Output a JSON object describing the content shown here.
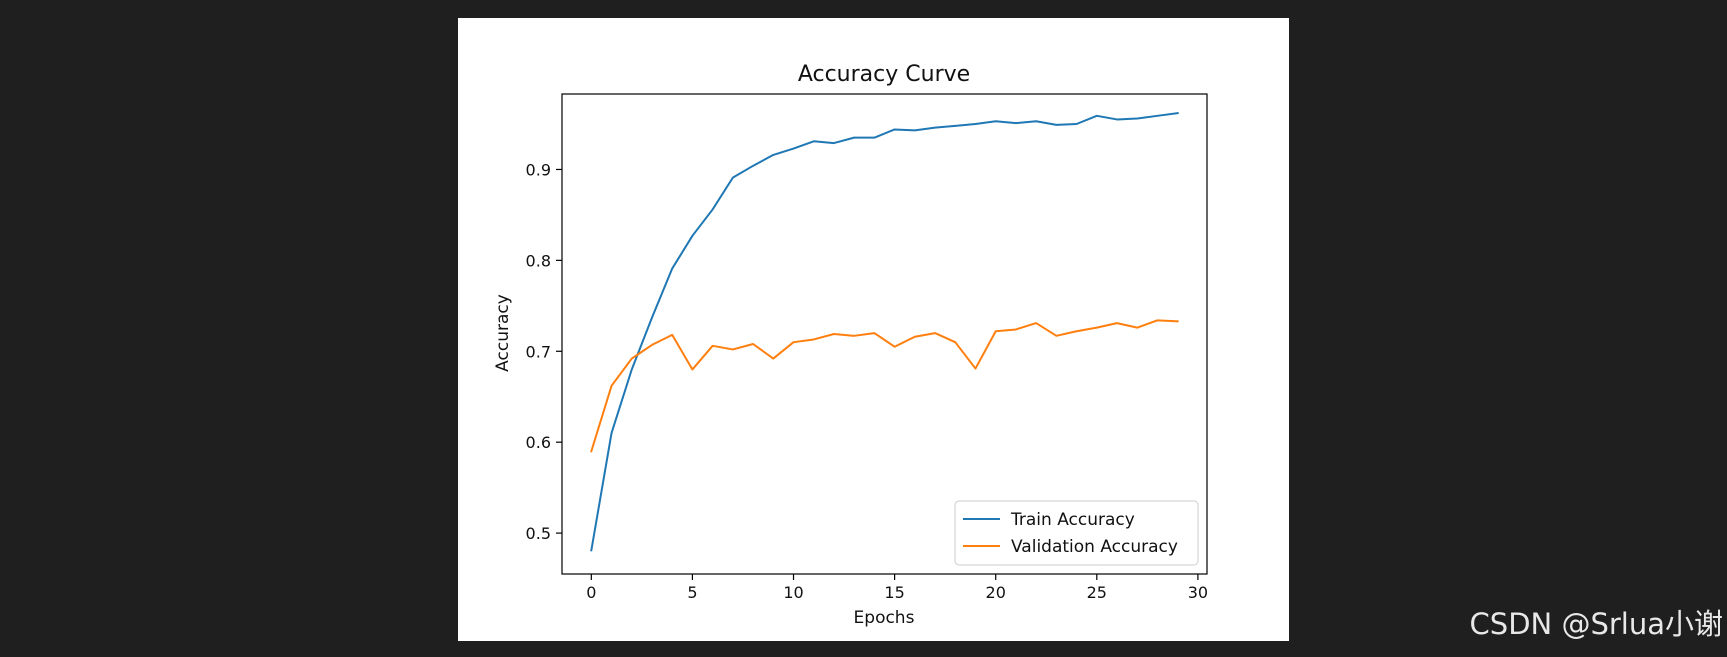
{
  "watermark": "CSDN @Srlua小谢",
  "chart_data": {
    "type": "line",
    "title": "Accuracy Curve",
    "xlabel": "Epochs",
    "ylabel": "Accuracy",
    "xlim": [
      -1.45,
      30.45
    ],
    "ylim": [
      0.455,
      0.983
    ],
    "xticks": [
      0,
      5,
      10,
      15,
      20,
      25,
      30
    ],
    "yticks": [
      0.5,
      0.6,
      0.7,
      0.8,
      0.9
    ],
    "ytick_labels": [
      "0.5",
      "0.6",
      "0.7",
      "0.8",
      "0.9"
    ],
    "grid": false,
    "legend": "lower right",
    "x": [
      0,
      1,
      2,
      3,
      4,
      5,
      6,
      7,
      8,
      9,
      10,
      11,
      12,
      13,
      14,
      15,
      16,
      17,
      18,
      19,
      20,
      21,
      22,
      23,
      24,
      25,
      26,
      27,
      28,
      29
    ],
    "series": [
      {
        "name": "Train Accuracy",
        "color": "#1f77b4",
        "values": [
          0.481,
          0.61,
          0.68,
          0.737,
          0.791,
          0.827,
          0.856,
          0.891,
          0.904,
          0.916,
          0.923,
          0.931,
          0.929,
          0.935,
          0.935,
          0.944,
          0.943,
          0.946,
          0.948,
          0.95,
          0.953,
          0.951,
          0.953,
          0.949,
          0.95,
          0.959,
          0.955,
          0.956,
          0.959,
          0.962
        ]
      },
      {
        "name": "Validation Accuracy",
        "color": "#ff7f0e",
        "values": [
          0.59,
          0.662,
          0.692,
          0.707,
          0.718,
          0.68,
          0.706,
          0.702,
          0.708,
          0.692,
          0.71,
          0.713,
          0.719,
          0.717,
          0.72,
          0.705,
          0.716,
          0.72,
          0.71,
          0.681,
          0.722,
          0.724,
          0.731,
          0.717,
          0.722,
          0.726,
          0.731,
          0.726,
          0.734,
          0.733
        ]
      }
    ]
  }
}
